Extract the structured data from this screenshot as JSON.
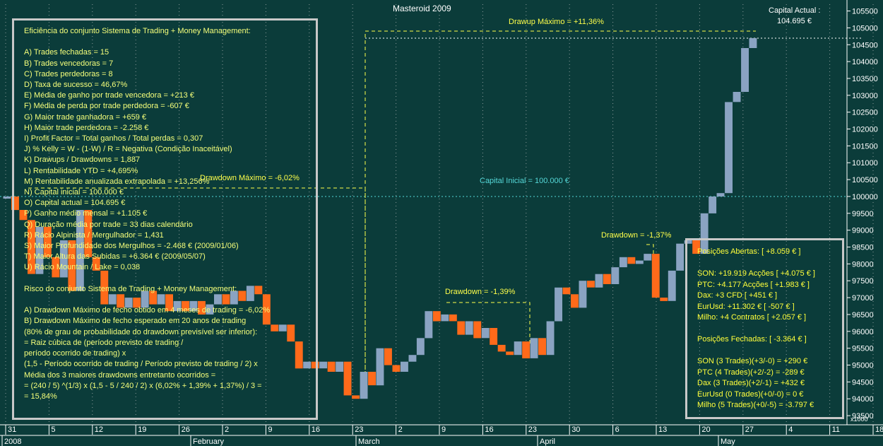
{
  "title": "Masteroid 2009",
  "capital_actual_label": "Capital Actual :",
  "capital_actual_value": "104.695 €",
  "annotations": {
    "drawup_max": "Drawup Máximo = +11,36%",
    "drawdown_max": "Drawdown Máximo = -6,02%",
    "capital_inicial": "Capital Inicial = 100.000 €",
    "drawdown_1": "Drawdown = -1,39%",
    "drawdown_2": "Drawdown = -1,37%"
  },
  "stats_panel": {
    "lines": [
      "Eficiência do conjunto Sistema de Trading + Money Management:",
      "",
      "A) Trades fechadas = 15",
      "B) Trades vencedoras = 7",
      "C) Trades perdedoras = 8",
      "D) Taxa de sucesso = 46,67%",
      "E) Média de ganho por trade vencedora = +213 €",
      "F) Média de perda por trade perdedora = -607 €",
      "G) Maior trade ganhadora = +659 €",
      "H) Maior trade perdedora = -2.258 €",
      "I) Profit Factor = Total ganhos / Total perdas = 0,307",
      "J) % Kelly = W - (1-W) / R = Negativa (Condição Inaceitável)",
      "K) Drawups / Drawdowns = 1,887",
      "L) Rentabilidade YTD = +4,695%",
      "M) Rentabilidade anualizada extrapolada = +13,256%",
      "N) Capital inicial = 100.000 €",
      "O) Capital actual = 104.695 €",
      "P) Ganho médio mensal = +1.105 €",
      "Q) Duração média por trade = 33 dias calendário",
      "R) Rácio Alpinista / Mergulhador = 1,431",
      "S) Maior Profundidade dos Mergulhos = -2.468 € (2009/01/06)",
      "T) Maior Altura das Subidas = +6.364 € (2009/05/07)",
      "U) Rácio Mountain / Lake = 0,038",
      "",
      "Risco do conjunto Sistema de Trading + Money Management:",
      "",
      "A) Drawdown Máximo de fecho obtido em 4 meses de trading = -6,02%",
      "B) Drawdown Máximo de fecho esperado em 20 anos de trading",
      "(80% de grau de probabilidade do drawdown previsível ser inferior):",
      "= Raiz cúbica de (período previsto de trading /",
      "período ocorrido de trading) x",
      "(1,5 - Período ocorrido de trading / Período previsto de trading / 2) x",
      "Média dos 3 maiores drawdowns entretanto ocorridos =",
      "= (240 / 5) ^(1/3) x (1,5 - 5 / 240 / 2) x (6,02% + 1,39% + 1,37%) / 3 =",
      "= 15,84%"
    ]
  },
  "positions_panel": {
    "lines": [
      "Posições Abertas: [ +8.059 € ]",
      "",
      "SON: +19.919 Acções [ +4.075 € ]",
      "PTC: +4.177 Acções [ +1.983 € ]",
      "Dax: +3 CFD [ +451 € ]",
      "EurUsd: +11.302 € [ -507 € ]",
      "Milho: +4 Contratos [ +2.057 € ]",
      "",
      "Posições Fechadas: [ -3.364 € ]",
      "",
      "SON (3 Trades)(+3/-0) = +290 €",
      "PTC (4 Trades)(+2/-2) = -289 €",
      "Dax (3 Trades)(+2/-1) = +432 €",
      "EurUsd (0 Trades)(+0/-0) = 0 €",
      "Milho (5 Trades)(+0/-5) = -3.797 €"
    ]
  },
  "colors": {
    "background": "#0b3c3a",
    "up_candle": "#8aa3c2",
    "down_candle": "#ff6a1a",
    "annotation": "#ffff4a",
    "capital_line": "#55d8d8",
    "axis_text": "#ffffff",
    "grid": "#8e9c9c"
  },
  "chart_data": {
    "type": "candlestick",
    "title": "Masteroid 2009",
    "x_ticks": [
      "31",
      "5",
      "12",
      "19",
      "26",
      "2",
      "9",
      "16",
      "23",
      "2",
      "9",
      "16",
      "23",
      "30",
      "6",
      "13",
      "20",
      "27",
      "4",
      "11",
      "18"
    ],
    "month_labels": [
      "2008",
      "February",
      "March",
      "April",
      "May"
    ],
    "y_ticks": [
      "93500",
      "94000",
      "94500",
      "95000",
      "95500",
      "96000",
      "96500",
      "97000",
      "97500",
      "98000",
      "98500",
      "99000",
      "99500",
      "100000",
      "100500",
      "101000",
      "101500",
      "102000",
      "102500",
      "103000",
      "103500",
      "104000",
      "104500",
      "105000",
      "105500"
    ],
    "ylim": [
      93250,
      105700
    ],
    "scale_note": "x1000",
    "series": [
      {
        "label": "2008-12-31",
        "open": 100000,
        "close": 100000
      },
      {
        "label": "2009-01-02",
        "open": 100000,
        "close": 99600
      },
      {
        "label": "2009-01-05",
        "open": 99600,
        "close": 99300
      },
      {
        "label": "2009-01-06",
        "open": 99300,
        "close": 97700
      },
      {
        "label": "2009-01-07",
        "open": 97700,
        "close": 99100
      },
      {
        "label": "2009-01-08",
        "open": 99100,
        "close": 98200
      },
      {
        "label": "2009-01-09",
        "open": 98200,
        "close": 97600
      },
      {
        "label": "2009-01-12",
        "open": 97600,
        "close": 98700
      },
      {
        "label": "2009-01-13",
        "open": 98700,
        "close": 97200
      },
      {
        "label": "2009-01-14",
        "open": 97200,
        "close": 99600
      },
      {
        "label": "2009-01-15",
        "open": 99600,
        "close": 98200
      },
      {
        "label": "2009-01-16",
        "open": 98200,
        "close": 97800
      },
      {
        "label": "2009-01-19",
        "open": 97800,
        "close": 96800
      },
      {
        "label": "2009-01-20",
        "open": 96800,
        "close": 97100
      },
      {
        "label": "2009-01-21",
        "open": 97100,
        "close": 96700
      },
      {
        "label": "2009-01-22",
        "open": 96700,
        "close": 97000
      },
      {
        "label": "2009-01-23",
        "open": 97000,
        "close": 96700
      },
      {
        "label": "2009-01-26",
        "open": 96700,
        "close": 97200
      },
      {
        "label": "2009-01-27",
        "open": 97200,
        "close": 96800
      },
      {
        "label": "2009-01-28",
        "open": 96800,
        "close": 97100
      },
      {
        "label": "2009-01-29",
        "open": 97100,
        "close": 96600
      },
      {
        "label": "2009-01-30",
        "open": 96600,
        "close": 96900
      },
      {
        "label": "2009-02-02",
        "open": 96900,
        "close": 96600
      },
      {
        "label": "2009-02-03",
        "open": 96600,
        "close": 96900
      },
      {
        "label": "2009-02-04",
        "open": 96900,
        "close": 96500
      },
      {
        "label": "2009-02-05",
        "open": 96500,
        "close": 96800
      },
      {
        "label": "2009-02-06",
        "open": 96800,
        "close": 97100
      },
      {
        "label": "2009-02-09",
        "open": 97100,
        "close": 96800
      },
      {
        "label": "2009-02-10",
        "open": 96800,
        "close": 97200
      },
      {
        "label": "2009-02-11",
        "open": 97200,
        "close": 96900
      },
      {
        "label": "2009-02-12",
        "open": 96900,
        "close": 97350
      },
      {
        "label": "2009-02-13",
        "open": 97350,
        "close": 97100
      },
      {
        "label": "2009-02-16",
        "open": 97100,
        "close": 96200
      },
      {
        "label": "2009-02-17",
        "open": 96200,
        "close": 96000
      },
      {
        "label": "2009-02-18",
        "open": 96000,
        "close": 96200
      },
      {
        "label": "2009-02-19",
        "open": 96200,
        "close": 95700
      },
      {
        "label": "2009-02-20",
        "open": 95700,
        "close": 94900
      },
      {
        "label": "2009-02-23",
        "open": 94900,
        "close": 95100
      },
      {
        "label": "2009-02-24",
        "open": 95100,
        "close": 94900
      },
      {
        "label": "2009-02-25",
        "open": 94900,
        "close": 95100
      },
      {
        "label": "2009-02-26",
        "open": 95100,
        "close": 94800
      },
      {
        "label": "2009-02-27",
        "open": 94800,
        "close": 95100
      },
      {
        "label": "2009-03-02",
        "open": 95100,
        "close": 94100
      },
      {
        "label": "2009-03-03",
        "open": 94100,
        "close": 94000
      },
      {
        "label": "2009-03-04",
        "open": 94000,
        "close": 94800
      },
      {
        "label": "2009-03-05",
        "open": 94800,
        "close": 94400
      },
      {
        "label": "2009-03-06",
        "open": 94400,
        "close": 95500
      },
      {
        "label": "2009-03-09",
        "open": 95500,
        "close": 95000
      },
      {
        "label": "2009-03-10",
        "open": 95000,
        "close": 94800
      },
      {
        "label": "2009-03-11",
        "open": 94800,
        "close": 95100
      },
      {
        "label": "2009-03-12",
        "open": 95100,
        "close": 95300
      },
      {
        "label": "2009-03-13",
        "open": 95300,
        "close": 95800
      },
      {
        "label": "2009-03-16",
        "open": 95800,
        "close": 96600
      },
      {
        "label": "2009-03-17",
        "open": 96600,
        "close": 96300
      },
      {
        "label": "2009-03-18",
        "open": 96300,
        "close": 96500
      },
      {
        "label": "2009-03-19",
        "open": 96500,
        "close": 96300
      },
      {
        "label": "2009-03-20",
        "open": 96300,
        "close": 95900
      },
      {
        "label": "2009-03-23",
        "open": 95900,
        "close": 96300
      },
      {
        "label": "2009-03-24",
        "open": 96300,
        "close": 95800
      },
      {
        "label": "2009-03-25",
        "open": 95800,
        "close": 96100
      },
      {
        "label": "2009-03-26",
        "open": 96100,
        "close": 95600
      },
      {
        "label": "2009-03-27",
        "open": 95600,
        "close": 95400
      },
      {
        "label": "2009-03-30",
        "open": 95400,
        "close": 95300
      },
      {
        "label": "2009-03-31",
        "open": 95300,
        "close": 95700
      },
      {
        "label": "2009-04-01",
        "open": 95700,
        "close": 95200
      },
      {
        "label": "2009-04-02",
        "open": 95200,
        "close": 95800
      },
      {
        "label": "2009-04-03",
        "open": 95800,
        "close": 95300
      },
      {
        "label": "2009-04-06",
        "open": 95300,
        "close": 96300
      },
      {
        "label": "2009-04-07",
        "open": 96300,
        "close": 97300
      },
      {
        "label": "2009-04-08",
        "open": 97300,
        "close": 97100
      },
      {
        "label": "2009-04-09",
        "open": 97100,
        "close": 96700
      },
      {
        "label": "2009-04-14",
        "open": 96700,
        "close": 97500
      },
      {
        "label": "2009-04-15",
        "open": 97500,
        "close": 97300
      },
      {
        "label": "2009-04-16",
        "open": 97300,
        "close": 97700
      },
      {
        "label": "2009-04-17",
        "open": 97700,
        "close": 97400
      },
      {
        "label": "2009-04-20",
        "open": 97400,
        "close": 97900
      },
      {
        "label": "2009-04-21",
        "open": 97900,
        "close": 98200
      },
      {
        "label": "2009-04-22",
        "open": 98200,
        "close": 98000
      },
      {
        "label": "2009-04-23",
        "open": 98000,
        "close": 98100
      },
      {
        "label": "2009-04-24",
        "open": 98100,
        "close": 98300
      },
      {
        "label": "2009-04-27",
        "open": 98300,
        "close": 97000
      },
      {
        "label": "2009-04-28",
        "open": 97000,
        "close": 96900
      },
      {
        "label": "2009-04-29",
        "open": 96900,
        "close": 97800
      },
      {
        "label": "2009-04-30",
        "open": 97800,
        "close": 98600
      },
      {
        "label": "2009-05-01",
        "open": 98600,
        "close": 98700
      },
      {
        "label": "2009-05-04",
        "open": 98700,
        "close": 98300
      },
      {
        "label": "2009-05-05",
        "open": 98300,
        "close": 99500
      },
      {
        "label": "2009-05-06",
        "open": 99500,
        "close": 100000
      },
      {
        "label": "2009-05-07",
        "open": 100000,
        "close": 100100
      },
      {
        "label": "2009-05-08",
        "open": 100100,
        "close": 102800
      },
      {
        "label": "2009-05-11",
        "open": 102800,
        "close": 103100
      },
      {
        "label": "2009-05-12",
        "open": 103100,
        "close": 104400
      },
      {
        "label": "2009-05-13",
        "open": 104400,
        "close": 104695
      }
    ]
  }
}
